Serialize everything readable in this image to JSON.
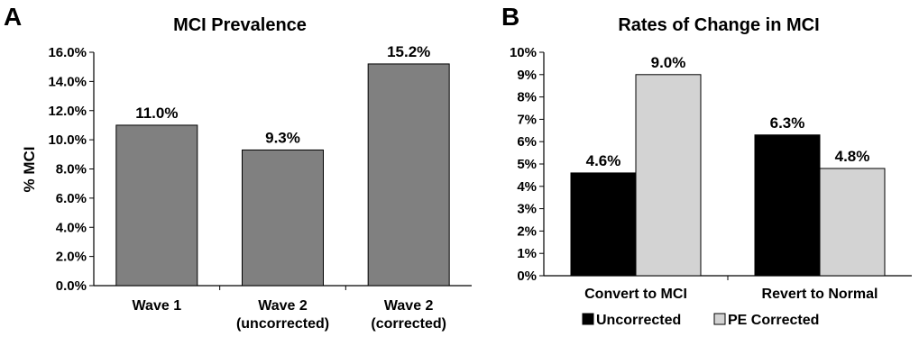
{
  "chart_data": [
    {
      "panel": "A",
      "type": "bar",
      "title": "MCI Prevalence",
      "ylabel": "% MCI",
      "xlabel": "",
      "ylim": [
        0,
        16
      ],
      "yticks": [
        "0.0%",
        "2.0%",
        "4.0%",
        "6.0%",
        "8.0%",
        "10.0%",
        "12.0%",
        "14.0%",
        "16.0%"
      ],
      "categories": [
        [
          "Wave 1"
        ],
        [
          "Wave 2",
          "(uncorrected)"
        ],
        [
          "Wave 2",
          "(corrected)"
        ]
      ],
      "values": [
        11.0,
        9.3,
        15.2
      ],
      "value_labels": [
        "11.0%",
        "9.3%",
        "15.2%"
      ],
      "bar_color": "#808080"
    },
    {
      "panel": "B",
      "type": "bar",
      "title": "Rates of Change in MCI",
      "ylabel": "",
      "xlabel": "",
      "ylim": [
        0,
        10
      ],
      "yticks": [
        "0%",
        "1%",
        "2%",
        "3%",
        "4%",
        "5%",
        "6%",
        "7%",
        "8%",
        "9%",
        "10%"
      ],
      "categories": [
        "Convert to MCI",
        "Revert to Normal"
      ],
      "series": [
        {
          "name": "Uncorrected",
          "values": [
            4.6,
            6.3
          ],
          "value_labels": [
            "4.6%",
            "6.3%"
          ],
          "color": "#000000"
        },
        {
          "name": "PE Corrected",
          "values": [
            9.0,
            4.8
          ],
          "value_labels": [
            "9.0%",
            "4.8%"
          ],
          "color": "#d3d3d3"
        }
      ],
      "legend": "bottom"
    }
  ]
}
